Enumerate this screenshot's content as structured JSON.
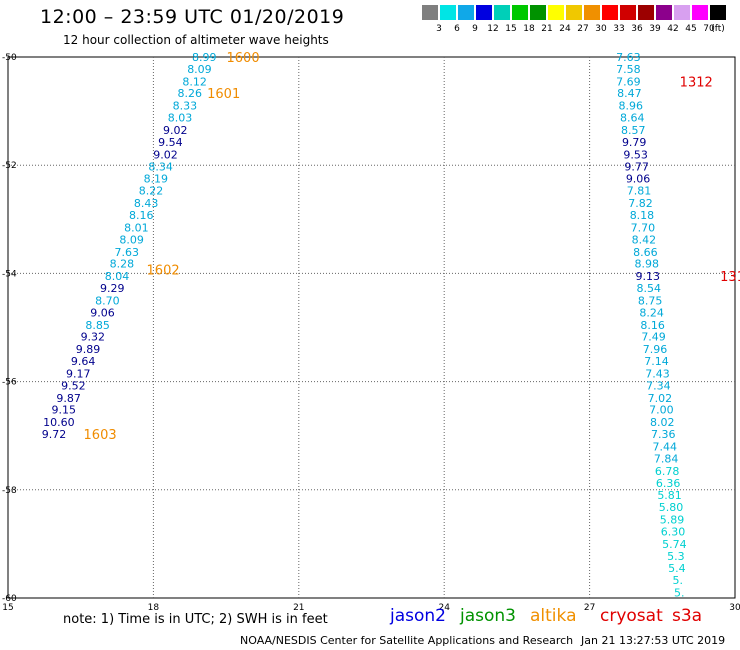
{
  "header": {
    "title": "12:00 – 23:59 UTC 01/20/2019",
    "subtitle": "12 hour collection of altimeter wave heights"
  },
  "scale": {
    "labels": [
      "3",
      "6",
      "9",
      "12",
      "15",
      "18",
      "21",
      "24",
      "27",
      "30",
      "33",
      "36",
      "39",
      "42",
      "45",
      "70",
      "(ft)"
    ],
    "colors": [
      "#7f7f7f",
      "#00e5e5",
      "#10a8e8",
      "#0000e0",
      "#00cfb8",
      "#00c800",
      "#009200",
      "#ffff00",
      "#f0c800",
      "#f09000",
      "#ff0000",
      "#d00000",
      "#9c0000",
      "#8c008c",
      "#d8a0f0",
      "#ff00ff",
      "#000000"
    ]
  },
  "chart_data": {
    "type": "scatter",
    "xlabel": "",
    "ylabel": "",
    "xlim": [
      15,
      30
    ],
    "ylim": [
      -60,
      -50
    ],
    "xticks": [
      "15",
      "18",
      "21",
      "24",
      "27",
      "30"
    ],
    "yticks": [
      "-50",
      "-52",
      "-54",
      "-56",
      "-58",
      "-60"
    ],
    "grid": true,
    "point_colors": {
      "light": "#00a8d8",
      "dark": "#00008c",
      "cyan": "#00d0d0"
    },
    "tracks": [
      {
        "points": [
          {
            "x": 19.05,
            "y": -50.0,
            "v": "8.99",
            "c": "light"
          },
          {
            "x": 18.95,
            "y": -50.22,
            "v": "8.09",
            "c": "light"
          },
          {
            "x": 18.85,
            "y": -50.45,
            "v": "8.12",
            "c": "light"
          },
          {
            "x": 18.75,
            "y": -50.67,
            "v": "8.26",
            "c": "light"
          },
          {
            "x": 18.65,
            "y": -50.9,
            "v": "8.33",
            "c": "light"
          },
          {
            "x": 18.55,
            "y": -51.12,
            "v": "8.03",
            "c": "light"
          },
          {
            "x": 18.45,
            "y": -51.35,
            "v": "9.02",
            "c": "dark"
          },
          {
            "x": 18.35,
            "y": -51.57,
            "v": "9.54",
            "c": "dark"
          },
          {
            "x": 18.25,
            "y": -51.8,
            "v": "9.02",
            "c": "dark"
          },
          {
            "x": 18.15,
            "y": -52.02,
            "v": "8.34",
            "c": "light"
          },
          {
            "x": 18.05,
            "y": -52.25,
            "v": "8.19",
            "c": "light"
          },
          {
            "x": 17.95,
            "y": -52.47,
            "v": "8.22",
            "c": "light"
          },
          {
            "x": 17.85,
            "y": -52.7,
            "v": "8.43",
            "c": "light"
          },
          {
            "x": 17.75,
            "y": -52.92,
            "v": "8.16",
            "c": "light"
          },
          {
            "x": 17.65,
            "y": -53.15,
            "v": "8.01",
            "c": "light"
          },
          {
            "x": 17.55,
            "y": -53.37,
            "v": "8.09",
            "c": "light"
          },
          {
            "x": 17.45,
            "y": -53.6,
            "v": "7.63",
            "c": "light"
          },
          {
            "x": 17.35,
            "y": -53.82,
            "v": "8.28",
            "c": "light"
          },
          {
            "x": 17.25,
            "y": -54.05,
            "v": "8.04",
            "c": "light"
          },
          {
            "x": 17.15,
            "y": -54.27,
            "v": "9.29",
            "c": "dark"
          },
          {
            "x": 17.05,
            "y": -54.5,
            "v": "8.70",
            "c": "light"
          },
          {
            "x": 16.95,
            "y": -54.72,
            "v": "9.06",
            "c": "dark"
          },
          {
            "x": 16.85,
            "y": -54.95,
            "v": "8.85",
            "c": "light"
          },
          {
            "x": 16.75,
            "y": -55.17,
            "v": "9.32",
            "c": "dark"
          },
          {
            "x": 16.65,
            "y": -55.4,
            "v": "9.89",
            "c": "dark"
          },
          {
            "x": 16.55,
            "y": -55.62,
            "v": "9.64",
            "c": "dark"
          },
          {
            "x": 16.45,
            "y": -55.85,
            "v": "9.17",
            "c": "dark"
          },
          {
            "x": 16.35,
            "y": -56.07,
            "v": "9.52",
            "c": "dark"
          },
          {
            "x": 16.25,
            "y": -56.3,
            "v": "9.87",
            "c": "dark"
          },
          {
            "x": 16.15,
            "y": -56.52,
            "v": "9.15",
            "c": "dark"
          },
          {
            "x": 16.05,
            "y": -56.75,
            "v": "10.60",
            "c": "dark"
          },
          {
            "x": 15.95,
            "y": -56.97,
            "v": "9.72",
            "c": "dark"
          }
        ],
        "time_labels": [
          {
            "x": 19.85,
            "y": -50.0,
            "text": "1600"
          },
          {
            "x": 19.45,
            "y": -50.67,
            "text": "1601"
          },
          {
            "x": 18.2,
            "y": -53.93,
            "text": "1602"
          },
          {
            "x": 16.9,
            "y": -56.97,
            "text": "1603"
          }
        ],
        "time_label_color": "#f08c00"
      },
      {
        "points": [
          {
            "x": 27.8,
            "y": -50.0,
            "v": "7.63",
            "c": "light"
          },
          {
            "x": 27.8,
            "y": -50.22,
            "v": "7.58",
            "c": "light"
          },
          {
            "x": 27.8,
            "y": -50.45,
            "v": "7.69",
            "c": "light"
          },
          {
            "x": 27.82,
            "y": -50.67,
            "v": "8.47",
            "c": "light"
          },
          {
            "x": 27.85,
            "y": -50.9,
            "v": "8.96",
            "c": "light"
          },
          {
            "x": 27.88,
            "y": -51.12,
            "v": "8.64",
            "c": "light"
          },
          {
            "x": 27.9,
            "y": -51.35,
            "v": "8.57",
            "c": "light"
          },
          {
            "x": 27.92,
            "y": -51.57,
            "v": "9.79",
            "c": "dark"
          },
          {
            "x": 27.95,
            "y": -51.8,
            "v": "9.53",
            "c": "dark"
          },
          {
            "x": 27.97,
            "y": -52.02,
            "v": "9.77",
            "c": "dark"
          },
          {
            "x": 28.0,
            "y": -52.25,
            "v": "9.06",
            "c": "dark"
          },
          {
            "x": 28.02,
            "y": -52.47,
            "v": "7.81",
            "c": "light"
          },
          {
            "x": 28.05,
            "y": -52.7,
            "v": "7.82",
            "c": "light"
          },
          {
            "x": 28.08,
            "y": -52.92,
            "v": "8.18",
            "c": "light"
          },
          {
            "x": 28.1,
            "y": -53.15,
            "v": "7.70",
            "c": "light"
          },
          {
            "x": 28.12,
            "y": -53.37,
            "v": "8.42",
            "c": "light"
          },
          {
            "x": 28.15,
            "y": -53.6,
            "v": "8.66",
            "c": "light"
          },
          {
            "x": 28.18,
            "y": -53.82,
            "v": "8.98",
            "c": "light"
          },
          {
            "x": 28.2,
            "y": -54.05,
            "v": "9.13",
            "c": "dark"
          },
          {
            "x": 28.22,
            "y": -54.27,
            "v": "8.54",
            "c": "light"
          },
          {
            "x": 28.25,
            "y": -54.5,
            "v": "8.75",
            "c": "light"
          },
          {
            "x": 28.28,
            "y": -54.72,
            "v": "8.24",
            "c": "light"
          },
          {
            "x": 28.3,
            "y": -54.95,
            "v": "8.16",
            "c": "light"
          },
          {
            "x": 28.32,
            "y": -55.17,
            "v": "7.49",
            "c": "light"
          },
          {
            "x": 28.35,
            "y": -55.4,
            "v": "7.96",
            "c": "light"
          },
          {
            "x": 28.38,
            "y": -55.62,
            "v": "7.14",
            "c": "light"
          },
          {
            "x": 28.4,
            "y": -55.85,
            "v": "7.43",
            "c": "light"
          },
          {
            "x": 28.42,
            "y": -56.07,
            "v": "7.34",
            "c": "light"
          },
          {
            "x": 28.45,
            "y": -56.3,
            "v": "7.02",
            "c": "light"
          },
          {
            "x": 28.48,
            "y": -56.52,
            "v": "7.00",
            "c": "light"
          },
          {
            "x": 28.5,
            "y": -56.75,
            "v": "8.02",
            "c": "light"
          },
          {
            "x": 28.52,
            "y": -56.97,
            "v": "7.36",
            "c": "light"
          },
          {
            "x": 28.55,
            "y": -57.2,
            "v": "7.44",
            "c": "light"
          },
          {
            "x": 28.58,
            "y": -57.42,
            "v": "7.84",
            "c": "light"
          },
          {
            "x": 28.6,
            "y": -57.65,
            "v": "6.78",
            "c": "cyan"
          },
          {
            "x": 28.62,
            "y": -57.87,
            "v": "6.36",
            "c": "cyan"
          },
          {
            "x": 28.65,
            "y": -58.1,
            "v": "5.81",
            "c": "cyan"
          },
          {
            "x": 28.68,
            "y": -58.32,
            "v": "5.80",
            "c": "cyan"
          },
          {
            "x": 28.7,
            "y": -58.55,
            "v": "5.89",
            "c": "cyan"
          },
          {
            "x": 28.72,
            "y": -58.77,
            "v": "6.30",
            "c": "cyan"
          },
          {
            "x": 28.75,
            "y": -59.0,
            "v": "5.74",
            "c": "cyan"
          },
          {
            "x": 28.78,
            "y": -59.22,
            "v": "5.3",
            "c": "cyan"
          },
          {
            "x": 28.8,
            "y": -59.45,
            "v": "5.4",
            "c": "cyan"
          },
          {
            "x": 28.82,
            "y": -59.67,
            "v": "5.",
            "c": "cyan"
          },
          {
            "x": 28.85,
            "y": -59.9,
            "v": "5.",
            "c": "cyan"
          }
        ],
        "time_labels": [
          {
            "x": 29.2,
            "y": -50.45,
            "text": "1312"
          },
          {
            "x": 29.95,
            "y": -54.05,
            "text": "131"
          }
        ],
        "time_label_color": "#e00000"
      }
    ]
  },
  "notes": {
    "text": "note:  1) Time is in UTC;  2) SWH is in feet"
  },
  "satellites": [
    {
      "name": "jason2",
      "color": "#0000e0"
    },
    {
      "name": "jason3",
      "color": "#009200"
    },
    {
      "name": "altika",
      "color": "#f09000"
    },
    {
      "name": "cryosat",
      "color": "#e00000"
    },
    {
      "name": "s3a",
      "color": "#e00000"
    }
  ],
  "footer": {
    "left": "NOAA/NESDIS Center for Satellite Applications and Research",
    "right": "Jan 21 13:27:53 UTC 2019"
  }
}
